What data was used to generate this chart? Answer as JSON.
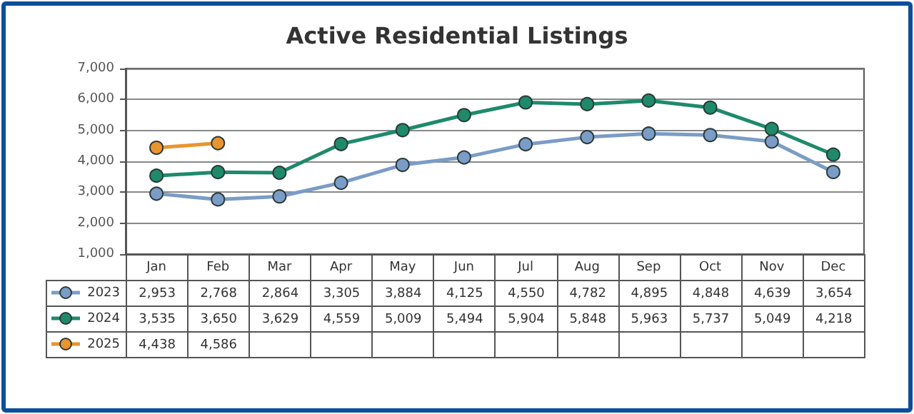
{
  "chart_data": {
    "type": "line",
    "title": "Active Residential Listings",
    "categories": [
      "Jan",
      "Feb",
      "Mar",
      "Apr",
      "May",
      "Jun",
      "Jul",
      "Aug",
      "Sep",
      "Oct",
      "Nov",
      "Dec"
    ],
    "series": [
      {
        "name": "2023",
        "color": "#7a9cc6",
        "values": [
          2953,
          2768,
          2864,
          3305,
          3884,
          4125,
          4550,
          4782,
          4895,
          4848,
          4639,
          3654
        ],
        "value_labels": [
          "2,953",
          "2,768",
          "2,864",
          "3,305",
          "3,884",
          "4,125",
          "4,550",
          "4,782",
          "4,895",
          "4,848",
          "4,639",
          "3,654"
        ]
      },
      {
        "name": "2024",
        "color": "#1e8a6a",
        "values": [
          3535,
          3650,
          3629,
          4559,
          5009,
          5494,
          5904,
          5848,
          5963,
          5737,
          5049,
          4218
        ],
        "value_labels": [
          "3,535",
          "3,650",
          "3,629",
          "4,559",
          "5,009",
          "5,494",
          "5,904",
          "5,848",
          "5,963",
          "5,737",
          "5,049",
          "4,218"
        ]
      },
      {
        "name": "2025",
        "color": "#e8952e",
        "values": [
          4438,
          4586,
          null,
          null,
          null,
          null,
          null,
          null,
          null,
          null,
          null,
          null
        ],
        "value_labels": [
          "4,438",
          "4,586",
          null,
          null,
          null,
          null,
          null,
          null,
          null,
          null,
          null,
          null
        ]
      }
    ],
    "ylim": [
      1000,
      7000
    ],
    "yticks": [
      {
        "value": 1000,
        "label": "1,000"
      },
      {
        "value": 2000,
        "label": "2,000"
      },
      {
        "value": 3000,
        "label": "3,000"
      },
      {
        "value": 4000,
        "label": "4,000"
      },
      {
        "value": 5000,
        "label": "5,000"
      },
      {
        "value": 6000,
        "label": "6,000"
      },
      {
        "value": 7000,
        "label": "7,000"
      }
    ],
    "grid": "y",
    "legend": "bottom",
    "marker": "circle",
    "line_style": "solid"
  }
}
